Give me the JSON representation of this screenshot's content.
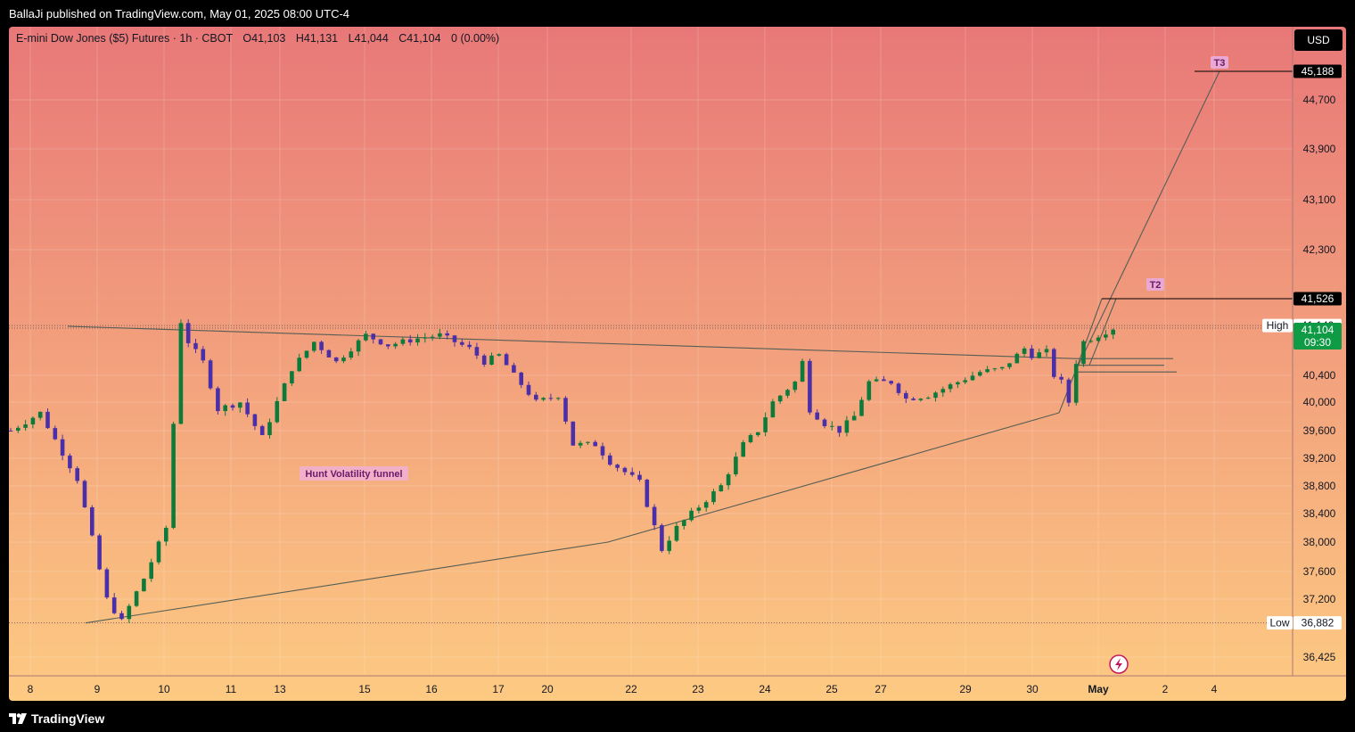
{
  "header": {
    "publisher_line": "BallaJi published on TradingView.com, May 01, 2025 08:00 UTC-4"
  },
  "footer": {
    "brand": "TradingView"
  },
  "colors": {
    "up": "#0c7a3a",
    "down": "#4b2fa8",
    "bg_top": "#e87878",
    "bg_bottom": "#fdca82",
    "text": "#131722"
  },
  "chart_data": {
    "type": "candlestick",
    "symbol_line": {
      "name": "E-mini Dow Jones ($5) Futures · 1h · CBOT",
      "open": "O41,103",
      "high": "H41,131",
      "low": "L41,044",
      "close": "C41,104",
      "change": "0 (0.00%)"
    },
    "currency": "USD",
    "y_ticks": [
      "36,425",
      "37,200",
      "37,600",
      "38,000",
      "38,400",
      "38,800",
      "39,200",
      "39,600",
      "40,000",
      "40,400",
      "42,300",
      "43,100",
      "43,900",
      "44,700"
    ],
    "y_tick_values": [
      36425,
      37200,
      37600,
      38000,
      38400,
      38800,
      39200,
      39600,
      40000,
      40400,
      42300,
      43100,
      43900,
      44700
    ],
    "x_ticks": [
      "8",
      "9",
      "10",
      "11",
      "13",
      "15",
      "16",
      "17",
      "20",
      "22",
      "23",
      "24",
      "25",
      "27",
      "29",
      "30",
      "May",
      "2",
      "4"
    ],
    "price_labels": {
      "t3": {
        "value": 45188,
        "text": "45,188"
      },
      "t2": {
        "value": 41526,
        "text": "41,526"
      },
      "high": {
        "label": "High",
        "value": 41140,
        "text": "41,140"
      },
      "last": {
        "value": 41104,
        "text": "41,104",
        "countdown": "09:30"
      },
      "low": {
        "label": "Low",
        "value": 36882,
        "text": "36,882"
      }
    },
    "annotations": {
      "t3": "T3",
      "t2": "T2",
      "funnel": "Hunt Volatility funnel"
    },
    "path": [
      [
        0,
        39600
      ],
      [
        4,
        39850
      ],
      [
        9,
        38900
      ],
      [
        13,
        37200
      ],
      [
        15,
        36900
      ],
      [
        18,
        37500
      ],
      [
        21,
        38200
      ],
      [
        23,
        41200
      ],
      [
        24,
        40900
      ],
      [
        26,
        40600
      ],
      [
        28,
        39900
      ],
      [
        31,
        40000
      ],
      [
        34,
        39500
      ],
      [
        38,
        40500
      ],
      [
        41,
        40900
      ],
      [
        44,
        40600
      ],
      [
        48,
        41000
      ],
      [
        51,
        40850
      ],
      [
        55,
        40950
      ],
      [
        58,
        41000
      ],
      [
        62,
        40800
      ],
      [
        64,
        40600
      ],
      [
        66,
        40700
      ],
      [
        68,
        40400
      ],
      [
        71,
        40000
      ],
      [
        74,
        40100
      ],
      [
        76,
        39400
      ],
      [
        79,
        39400
      ],
      [
        81,
        39150
      ],
      [
        85,
        38850
      ],
      [
        88,
        37900
      ],
      [
        90,
        38200
      ],
      [
        93,
        38500
      ],
      [
        96,
        38800
      ],
      [
        99,
        39400
      ],
      [
        101,
        39600
      ],
      [
        103,
        40000
      ],
      [
        106,
        40300
      ],
      [
        107,
        40600
      ],
      [
        108,
        39900
      ],
      [
        110,
        39700
      ],
      [
        112,
        39600
      ],
      [
        114,
        39800
      ],
      [
        116,
        40300
      ],
      [
        119,
        40300
      ],
      [
        121,
        40050
      ],
      [
        124,
        40100
      ],
      [
        126,
        40200
      ],
      [
        129,
        40350
      ],
      [
        131,
        40450
      ],
      [
        134,
        40500
      ],
      [
        137,
        40800
      ],
      [
        138,
        40700
      ],
      [
        140,
        40750
      ],
      [
        141,
        40400
      ],
      [
        142,
        40300
      ],
      [
        143,
        40000
      ],
      [
        144,
        40600
      ],
      [
        145,
        40900
      ],
      [
        147,
        41000
      ],
      [
        149,
        41104
      ]
    ]
  }
}
